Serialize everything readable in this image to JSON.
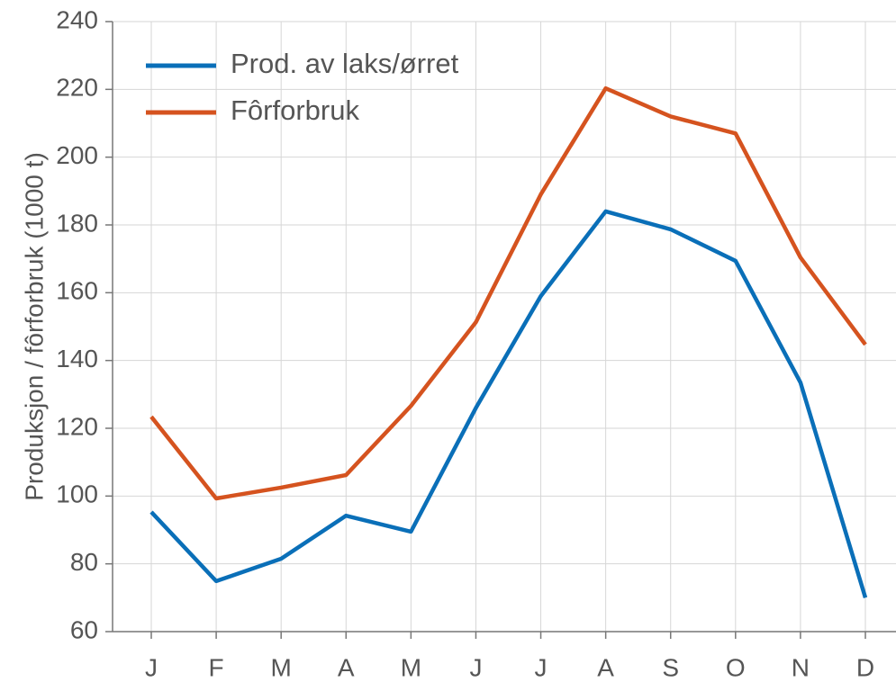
{
  "chart_data": {
    "type": "line",
    "y_label": "Produksjon / fôrforbruk (1000 t)",
    "categories": [
      "J",
      "F",
      "M",
      "A",
      "M",
      "J",
      "J",
      "A",
      "S",
      "O",
      "N",
      "D"
    ],
    "series": [
      {
        "name": "Prod. av laks/ørret",
        "color": "#0a6fb8",
        "values": [
          95.3,
          74.9,
          81.5,
          94.2,
          89.5,
          126,
          159,
          184,
          178.7,
          169.4,
          133.5,
          70
        ]
      },
      {
        "name": "Fôrforbruk",
        "color": "#d5531f",
        "values": [
          123.4,
          99.3,
          102.5,
          106.2,
          126.6,
          151.3,
          189,
          220.3,
          212,
          207,
          170.4,
          144.7
        ]
      }
    ],
    "ylim": [
      60,
      240
    ],
    "yticks": [
      60,
      80,
      100,
      120,
      140,
      160,
      180,
      200,
      220,
      240
    ],
    "grid": true,
    "legend": "top-left"
  }
}
